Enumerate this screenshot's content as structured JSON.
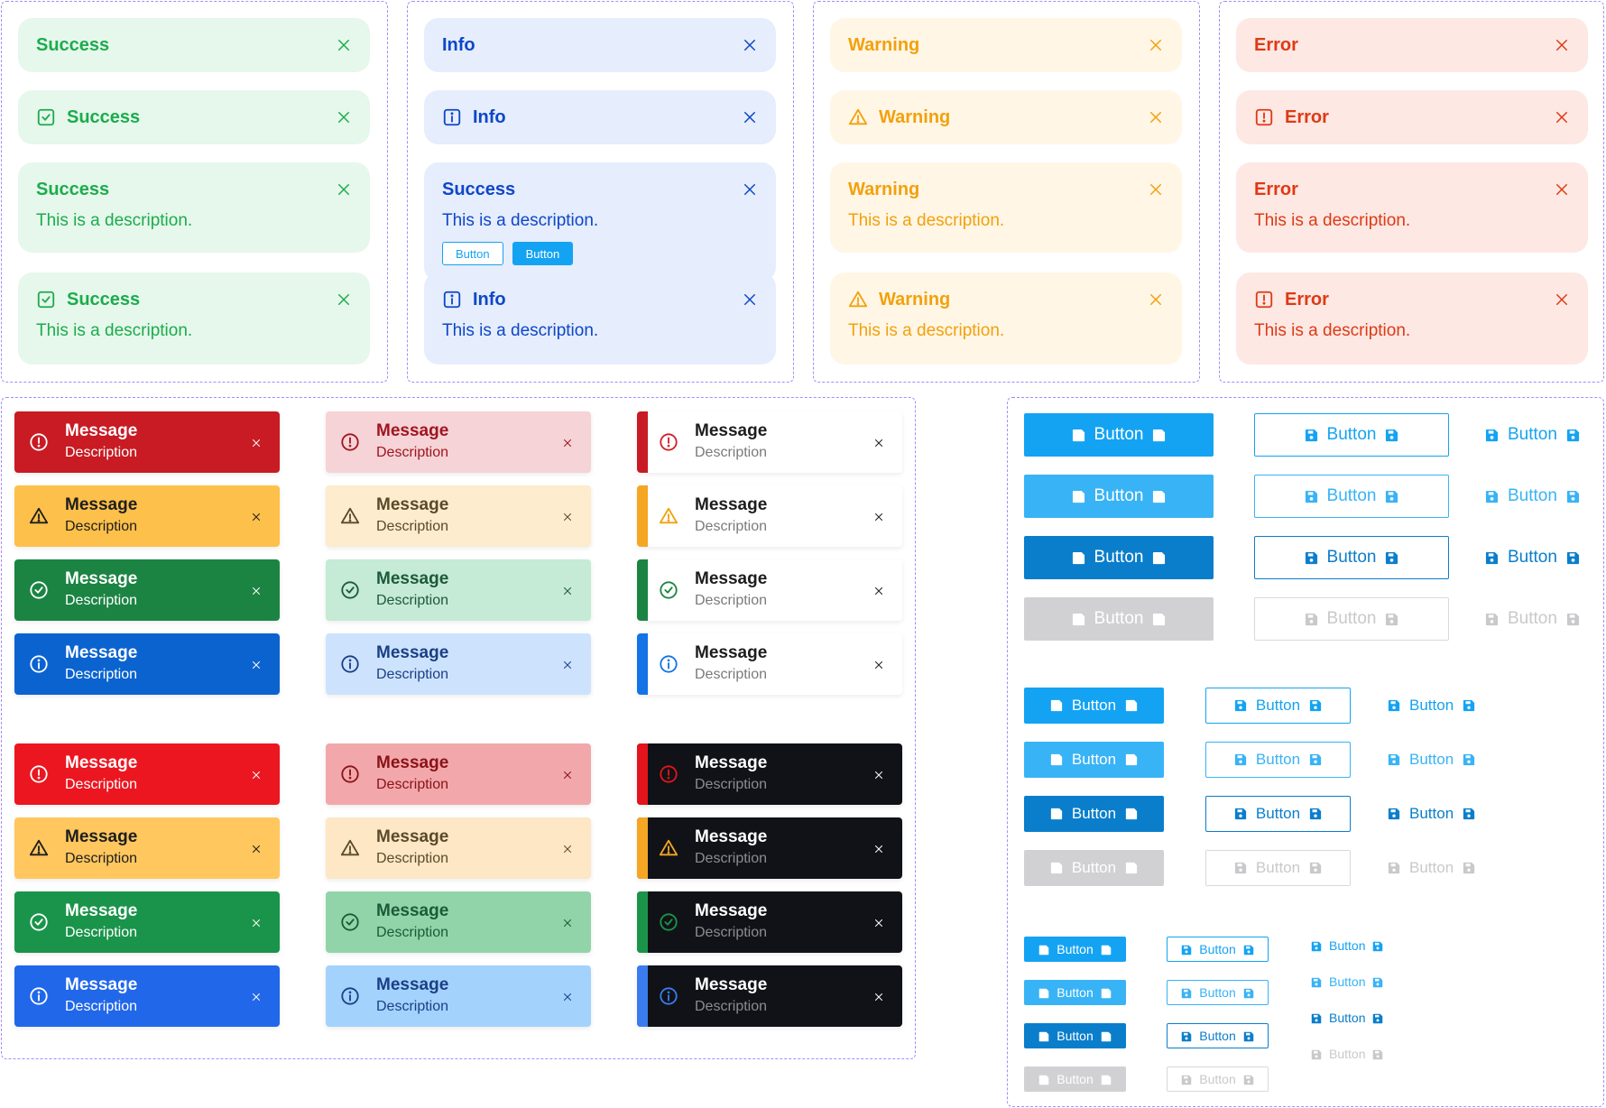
{
  "alerts": {
    "success": {
      "title": "Success",
      "desc": "This is a description."
    },
    "info": {
      "title": "Info",
      "desc": "This is a description.",
      "mixed_title": "Success",
      "btn_outline": "Button",
      "btn_solid": "Button"
    },
    "warning": {
      "title": "Warning",
      "desc": "This is a description."
    },
    "error": {
      "title": "Error",
      "desc": "This is a description."
    }
  },
  "toast": {
    "message": "Message",
    "description": "Description"
  },
  "button_label": "Button",
  "icons": {
    "close": "close-icon",
    "check": "check-square-icon",
    "info": "info-square-icon",
    "warning": "warning-triangle-icon",
    "error": "error-square-icon",
    "save": "floppy-disk-icon",
    "check-circle": "check-circle-icon",
    "info-circle": "info-circle-icon",
    "error-circle": "error-circle-icon"
  },
  "colors": {
    "success": "#1cac4c",
    "info": "#0d47c9",
    "warning": "#f2a10c",
    "error": "#dd3a16",
    "primary": "#14a3f2",
    "primary_hover": "#38b3f6",
    "primary_active": "#0a7ecb",
    "disabled": "#d1d0d3"
  }
}
